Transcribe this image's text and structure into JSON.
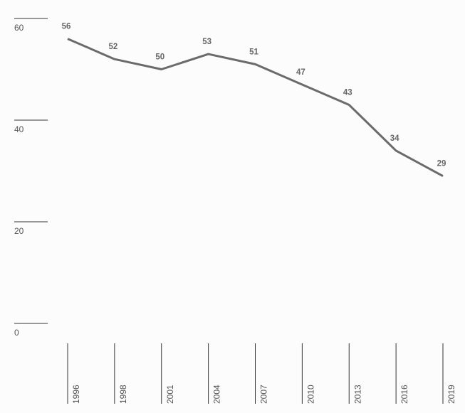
{
  "chart_data": {
    "type": "line",
    "categories": [
      "1996",
      "1998",
      "2001",
      "2004",
      "2007",
      "2010",
      "2013",
      "2016",
      "2019"
    ],
    "values": [
      56,
      52,
      50,
      53,
      51,
      47,
      43,
      34,
      29
    ],
    "color": "#6b6b6b",
    "ylim": [
      0,
      60
    ],
    "yticks": [
      0,
      20,
      40,
      60
    ]
  }
}
